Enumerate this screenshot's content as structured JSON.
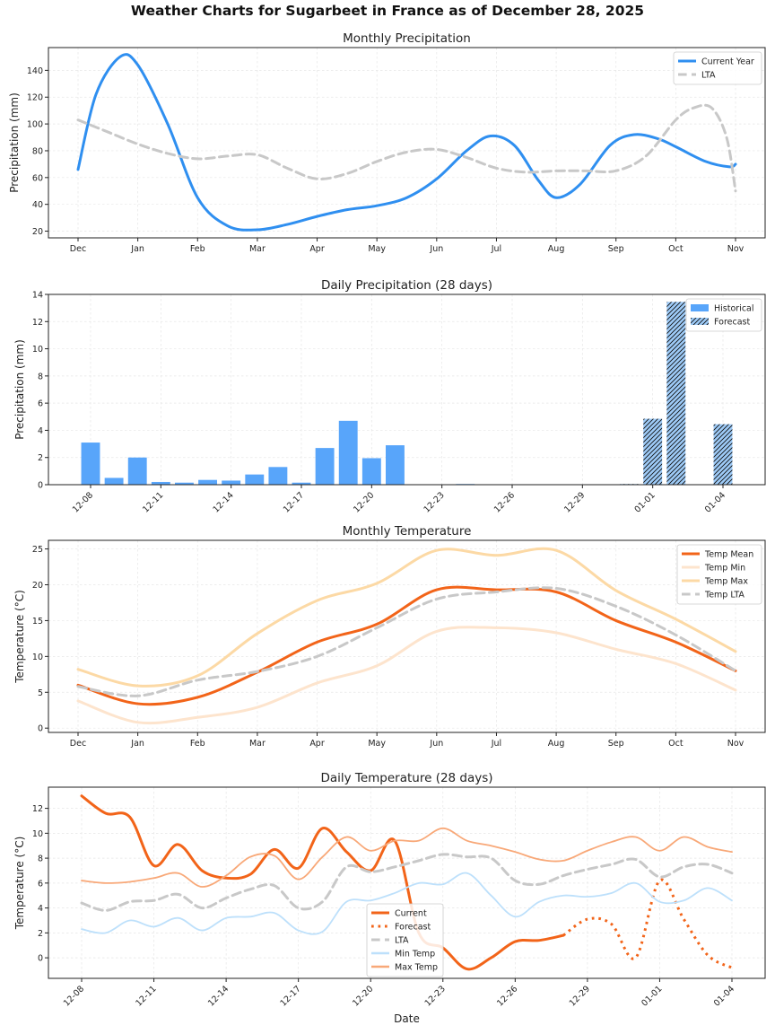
{
  "title": "Weather Charts for Sugarbeet in France as of December 28, 2025",
  "chart_data": [
    {
      "id": "monthly-precip",
      "type": "line",
      "title": "Monthly Precipitation",
      "xlabel": "",
      "ylabel": "Precipitation (mm)",
      "categories": [
        "Dec",
        "Jan",
        "Feb",
        "Mar",
        "Apr",
        "May",
        "Jun",
        "Jul",
        "Aug",
        "Sep",
        "Oct",
        "Nov"
      ],
      "ylim": [
        15,
        157
      ],
      "yticks": [
        20,
        40,
        60,
        80,
        100,
        120,
        140
      ],
      "grid": true,
      "legend_position": "top-right",
      "series": [
        {
          "name": "Current Year",
          "color": "#2f8ff0",
          "style": "solid",
          "width": 3,
          "x": [
            0,
            0.3,
            0.7,
            1.0,
            1.5,
            2.0,
            2.5,
            3.0,
            3.5,
            4.0,
            4.5,
            5.0,
            5.5,
            6.0,
            6.5,
            6.9,
            7.3,
            7.7,
            8.0,
            8.4,
            8.9,
            9.3,
            9.7,
            10.0,
            10.5,
            10.9,
            11.0
          ],
          "values": [
            66,
            122,
            150,
            144,
            100,
            45,
            24,
            21,
            25,
            31,
            36,
            39,
            45,
            59,
            80,
            91,
            84,
            58,
            45,
            55,
            84,
            92,
            89,
            83,
            72,
            68,
            70
          ]
        },
        {
          "name": "LTA",
          "color": "#c8c8c8",
          "style": "dashed",
          "width": 3,
          "x": [
            0,
            0.5,
            1.0,
            1.5,
            2.0,
            2.5,
            3.0,
            3.5,
            4.0,
            4.5,
            5.0,
            5.5,
            6.0,
            6.5,
            7.0,
            7.5,
            8.0,
            8.5,
            9.0,
            9.5,
            10.0,
            10.3,
            10.6,
            10.85,
            11.0
          ],
          "values": [
            103,
            94,
            85,
            78,
            74,
            76,
            77,
            67,
            59,
            63,
            72,
            79,
            81,
            75,
            67,
            64,
            65,
            65,
            65,
            76,
            103,
            112,
            112,
            90,
            50
          ]
        }
      ]
    },
    {
      "id": "daily-precip",
      "type": "bar",
      "title": "Daily Precipitation (28 days)",
      "xlabel": "",
      "ylabel": "Precipitation (mm)",
      "categories": [
        "12-08",
        "12-09",
        "12-10",
        "12-11",
        "12-12",
        "12-13",
        "12-14",
        "12-15",
        "12-16",
        "12-17",
        "12-18",
        "12-19",
        "12-20",
        "12-21",
        "12-22",
        "12-23",
        "12-24",
        "12-25",
        "12-26",
        "12-27",
        "12-28",
        "12-29",
        "12-30",
        "12-31",
        "01-01",
        "01-02",
        "01-03",
        "01-04"
      ],
      "xticks": [
        "12-08",
        "12-11",
        "12-14",
        "12-17",
        "12-20",
        "12-23",
        "12-26",
        "12-29",
        "01-01",
        "01-04"
      ],
      "ylim": [
        0,
        14
      ],
      "yticks": [
        0,
        2,
        4,
        6,
        8,
        10,
        12,
        14
      ],
      "grid": true,
      "legend_position": "top-right",
      "series": [
        {
          "name": "Historical",
          "color": "#58a5fa",
          "values": [
            3.1,
            0.5,
            2.0,
            0.2,
            0.15,
            0.35,
            0.3,
            0.75,
            1.3,
            0.15,
            2.7,
            4.7,
            1.95,
            2.9,
            0,
            0,
            0.05,
            0,
            0,
            0,
            0,
            null,
            null,
            null,
            null,
            null,
            null,
            null
          ]
        },
        {
          "name": "Forecast",
          "color": "#9ecbf8",
          "hatch": "///",
          "values": [
            null,
            null,
            null,
            null,
            null,
            null,
            null,
            null,
            null,
            null,
            null,
            null,
            null,
            null,
            null,
            null,
            null,
            null,
            null,
            null,
            null,
            0,
            0,
            0.05,
            4.85,
            13.45,
            0,
            4.45
          ]
        }
      ]
    },
    {
      "id": "monthly-temp",
      "type": "line",
      "title": "Monthly Temperature",
      "xlabel": "",
      "ylabel": "Temperature (°C)",
      "categories": [
        "Dec",
        "Jan",
        "Feb",
        "Mar",
        "Apr",
        "May",
        "Jun",
        "Jul",
        "Aug",
        "Sep",
        "Oct",
        "Nov"
      ],
      "ylim": [
        -0.6,
        26.2
      ],
      "yticks": [
        0,
        5,
        10,
        15,
        20,
        25
      ],
      "grid": true,
      "legend_position": "top-right",
      "series": [
        {
          "name": "Temp Mean",
          "color": "#f26419",
          "style": "solid",
          "width": 3,
          "values": [
            6.0,
            3.4,
            4.3,
            7.8,
            12.0,
            14.5,
            19.3,
            19.3,
            19.0,
            15.0,
            12.0,
            8.0
          ]
        },
        {
          "name": "Temp Min",
          "color": "#fde4cd",
          "style": "solid",
          "width": 3,
          "values": [
            3.8,
            0.8,
            1.5,
            2.9,
            6.3,
            8.7,
            13.5,
            14.0,
            13.3,
            11.0,
            9.0,
            5.3
          ]
        },
        {
          "name": "Temp Max",
          "color": "#fcd9a5",
          "style": "solid",
          "width": 3,
          "values": [
            8.2,
            5.9,
            7.3,
            13.2,
            17.8,
            20.2,
            24.8,
            24.1,
            24.8,
            19.2,
            15.2,
            10.7
          ]
        },
        {
          "name": "Temp LTA",
          "color": "#c8c8c8",
          "style": "dashed",
          "width": 3,
          "values": [
            5.8,
            4.5,
            6.7,
            7.9,
            10.0,
            14.0,
            18.0,
            19.0,
            19.5,
            17.0,
            13.0,
            8.0
          ]
        }
      ]
    },
    {
      "id": "daily-temp",
      "type": "line",
      "title": "Daily Temperature (28 days)",
      "xlabel": "Date",
      "ylabel": "Temperature (°C)",
      "categories": [
        "12-08",
        "12-09",
        "12-10",
        "12-11",
        "12-12",
        "12-13",
        "12-14",
        "12-15",
        "12-16",
        "12-17",
        "12-18",
        "12-19",
        "12-20",
        "12-21",
        "12-22",
        "12-23",
        "12-24",
        "12-25",
        "12-26",
        "12-27",
        "12-28",
        "12-29",
        "12-30",
        "12-31",
        "01-01",
        "01-02",
        "01-03",
        "01-04"
      ],
      "xticks": [
        "12-08",
        "12-11",
        "12-14",
        "12-17",
        "12-20",
        "12-23",
        "12-26",
        "12-29",
        "01-01",
        "01-04"
      ],
      "ylim": [
        -1.65,
        13.7
      ],
      "yticks": [
        0,
        2,
        4,
        6,
        8,
        10,
        12
      ],
      "grid": true,
      "legend_position": "lower-center",
      "series": [
        {
          "name": "Current",
          "color": "#f26419",
          "style": "solid",
          "width": 3,
          "values": [
            13.0,
            11.6,
            11.3,
            7.4,
            9.1,
            7.0,
            6.4,
            6.7,
            8.7,
            7.2,
            10.4,
            8.5,
            7.0,
            9.4,
            2.0,
            0.8,
            -0.9,
            0.0,
            1.3,
            1.4,
            1.8,
            null,
            null,
            null,
            null,
            null,
            null,
            null
          ]
        },
        {
          "name": "Forecast",
          "color": "#f26419",
          "style": "dotted",
          "width": 3,
          "values": [
            null,
            null,
            null,
            null,
            null,
            null,
            null,
            null,
            null,
            null,
            null,
            null,
            null,
            null,
            null,
            null,
            null,
            null,
            null,
            null,
            1.8,
            3.1,
            2.7,
            0.0,
            6.2,
            3.1,
            0.2,
            -0.8
          ]
        },
        {
          "name": "LTA",
          "color": "#c8c8c8",
          "style": "dashed",
          "width": 3,
          "values": [
            4.4,
            3.8,
            4.5,
            4.6,
            5.1,
            4.0,
            4.8,
            5.5,
            5.8,
            4.0,
            4.5,
            7.3,
            6.9,
            7.3,
            7.8,
            8.3,
            8.1,
            8.0,
            6.2,
            5.9,
            6.6,
            7.1,
            7.5,
            7.9,
            6.5,
            7.3,
            7.5,
            6.8
          ]
        },
        {
          "name": "Min Temp",
          "color": "#bde0fb",
          "style": "solid",
          "width": 1.8,
          "values": [
            2.3,
            2.0,
            3.0,
            2.5,
            3.2,
            2.2,
            3.2,
            3.3,
            3.6,
            2.2,
            2.1,
            4.5,
            4.6,
            5.2,
            6.0,
            5.9,
            6.8,
            5.0,
            3.3,
            4.5,
            5.0,
            4.9,
            5.2,
            6.0,
            4.5,
            4.6,
            5.6,
            4.6
          ]
        },
        {
          "name": "Max Temp",
          "color": "#f8a878",
          "style": "solid",
          "width": 1.8,
          "values": [
            6.2,
            6.0,
            6.1,
            6.4,
            6.8,
            5.7,
            6.6,
            8.1,
            8.2,
            6.3,
            8.1,
            9.7,
            8.6,
            9.4,
            9.4,
            10.4,
            9.4,
            9.0,
            8.5,
            7.9,
            7.8,
            8.6,
            9.3,
            9.7,
            8.6,
            9.7,
            8.9,
            8.5
          ]
        }
      ]
    }
  ]
}
